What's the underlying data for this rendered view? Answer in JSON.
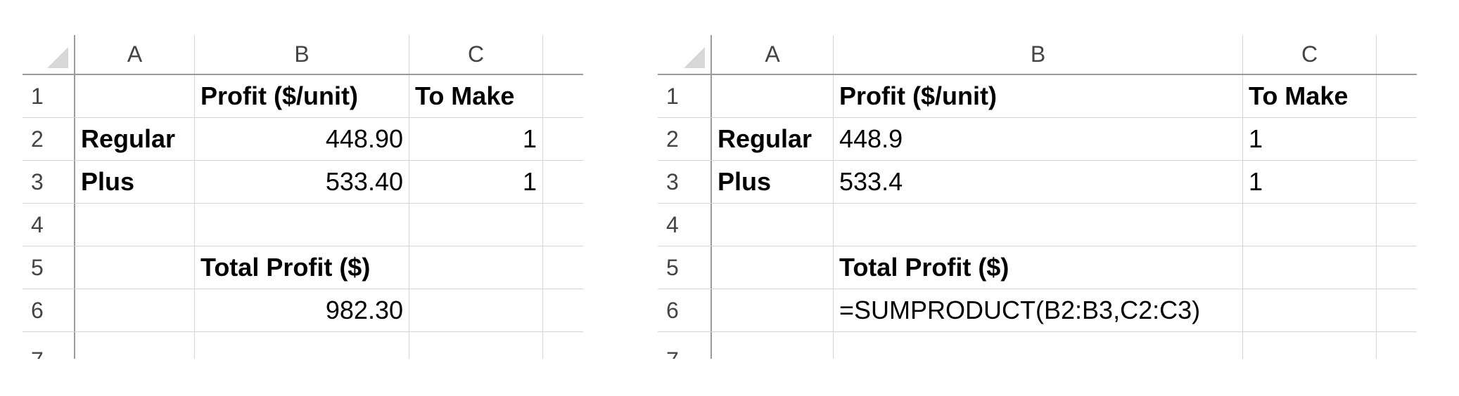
{
  "columns": [
    "A",
    "B",
    "C"
  ],
  "row_numbers": [
    "1",
    "2",
    "3",
    "4",
    "5",
    "6",
    "7"
  ],
  "values_view": {
    "rows": [
      [
        "",
        "Profit ($/unit)",
        "To Make"
      ],
      [
        "Regular",
        "448.90",
        "1"
      ],
      [
        "Plus",
        "533.40",
        "1"
      ],
      [
        "",
        "",
        ""
      ],
      [
        "",
        "Total Profit ($)",
        ""
      ],
      [
        "",
        "982.30",
        ""
      ]
    ]
  },
  "formulas_view": {
    "rows": [
      [
        "",
        "Profit ($/unit)",
        "To Make"
      ],
      [
        "Regular",
        "448.9",
        "1"
      ],
      [
        "Plus",
        "533.4",
        "1"
      ],
      [
        "",
        "",
        ""
      ],
      [
        "",
        "Total Profit ($)",
        ""
      ],
      [
        "",
        "=SUMPRODUCT(B2:B3,C2:C3)",
        ""
      ]
    ]
  }
}
